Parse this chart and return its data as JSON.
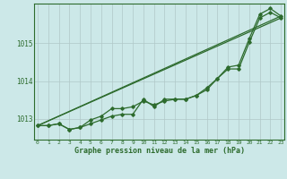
{
  "x": [
    0,
    1,
    2,
    3,
    4,
    5,
    6,
    7,
    8,
    9,
    10,
    11,
    12,
    13,
    14,
    15,
    16,
    17,
    18,
    19,
    20,
    21,
    22,
    23
  ],
  "line1": [
    1012.82,
    1012.82,
    1012.87,
    1012.72,
    1012.77,
    1012.87,
    1012.97,
    1013.07,
    1013.12,
    1013.12,
    1013.52,
    1013.32,
    1013.52,
    1013.52,
    1013.52,
    1013.62,
    1013.77,
    1014.07,
    1014.32,
    1014.32,
    1015.02,
    1015.67,
    1015.82,
    1015.67
  ],
  "line2": [
    1012.82,
    1012.82,
    1012.87,
    1012.72,
    1012.77,
    1012.97,
    1013.07,
    1013.27,
    1013.27,
    1013.32,
    1013.47,
    1013.37,
    1013.47,
    1013.52,
    1013.52,
    1013.62,
    1013.82,
    1014.07,
    1014.37,
    1014.42,
    1015.12,
    1015.77,
    1015.92,
    1015.72
  ],
  "trend1_x": [
    0,
    23
  ],
  "trend1_y": [
    1012.82,
    1015.67
  ],
  "trend2_x": [
    0,
    23
  ],
  "trend2_y": [
    1012.82,
    1015.72
  ],
  "line_color": "#2d6b2d",
  "bg_color": "#cce8e8",
  "grid_color": "#b0c8c8",
  "xlabel": "Graphe pression niveau de la mer (hPa)",
  "yticks": [
    1013,
    1014,
    1015
  ],
  "xticks": [
    0,
    1,
    2,
    3,
    4,
    5,
    6,
    7,
    8,
    9,
    10,
    11,
    12,
    13,
    14,
    15,
    16,
    17,
    18,
    19,
    20,
    21,
    22,
    23
  ],
  "ylim": [
    1012.45,
    1016.05
  ],
  "xlim": [
    -0.3,
    23.3
  ]
}
